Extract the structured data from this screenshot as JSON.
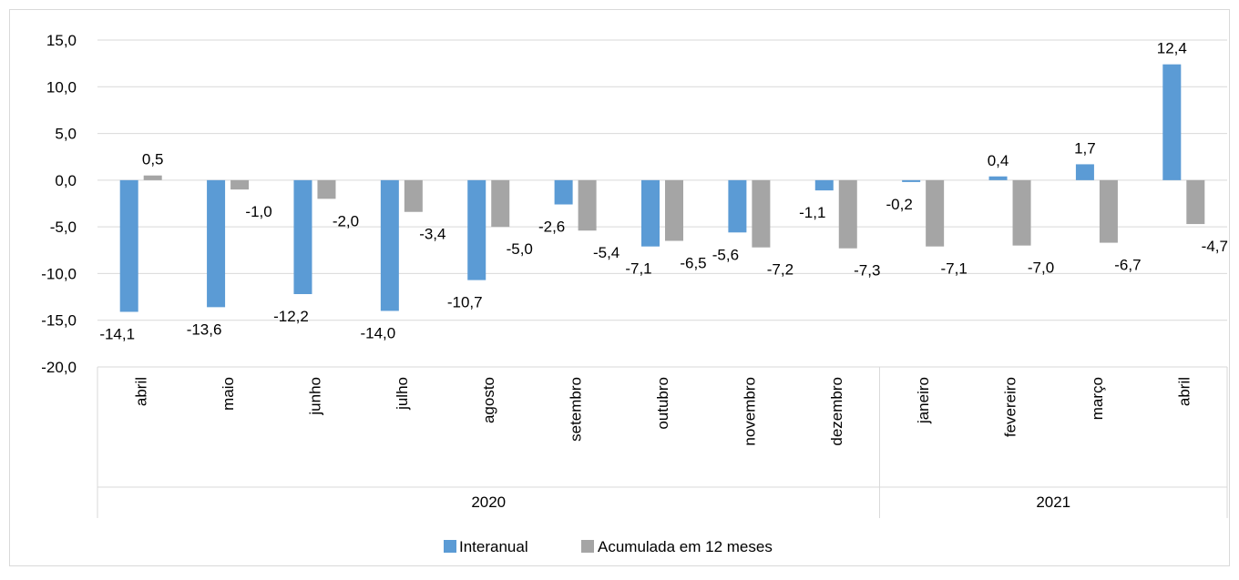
{
  "chart_data": {
    "type": "bar",
    "title": "",
    "xlabel": "",
    "ylabel": "",
    "ylim": [
      -20,
      15
    ],
    "y_ticks": [
      "15,0",
      "10,0",
      "5,0",
      "0,0",
      "-5,0",
      "-10,0",
      "-15,0",
      "-20,0"
    ],
    "grid": true,
    "legend_position": "bottom",
    "categories": [
      "abril",
      "maio",
      "junho",
      "julho",
      "agosto",
      "setembro",
      "outubro",
      "novembro",
      "dezembro",
      "janeiro",
      "fevereiro",
      "março",
      "abril"
    ],
    "groups": [
      {
        "label": "2020",
        "count": 9
      },
      {
        "label": "2021",
        "count": 4
      }
    ],
    "series": [
      {
        "name": "Interanual",
        "color": "#5B9BD5",
        "values": [
          -14.1,
          -13.6,
          -12.2,
          -14.0,
          -10.7,
          -2.6,
          -7.1,
          -5.6,
          -1.1,
          -0.2,
          0.4,
          1.7,
          12.4
        ],
        "labels": [
          "-14,1",
          "-13,6",
          "-12,2",
          "-14,0",
          "-10,7",
          "-2,6",
          "-7,1",
          "-5,6",
          "-1,1",
          "-0,2",
          "0,4",
          "1,7",
          "12,4"
        ]
      },
      {
        "name": "Acumulada em 12 meses",
        "color": "#A5A5A5",
        "values": [
          0.5,
          -1.0,
          -2.0,
          -3.4,
          -5.0,
          -5.4,
          -6.5,
          -7.2,
          -7.3,
          -7.1,
          -7.0,
          -6.7,
          -4.7
        ],
        "labels": [
          "0,5",
          "-1,0",
          "-2,0",
          "-3,4",
          "-5,0",
          "-5,4",
          "-6,5",
          "-7,2",
          "-7,3",
          "-7,1",
          "-7,0",
          "-6,7",
          "-4,7"
        ]
      }
    ]
  }
}
